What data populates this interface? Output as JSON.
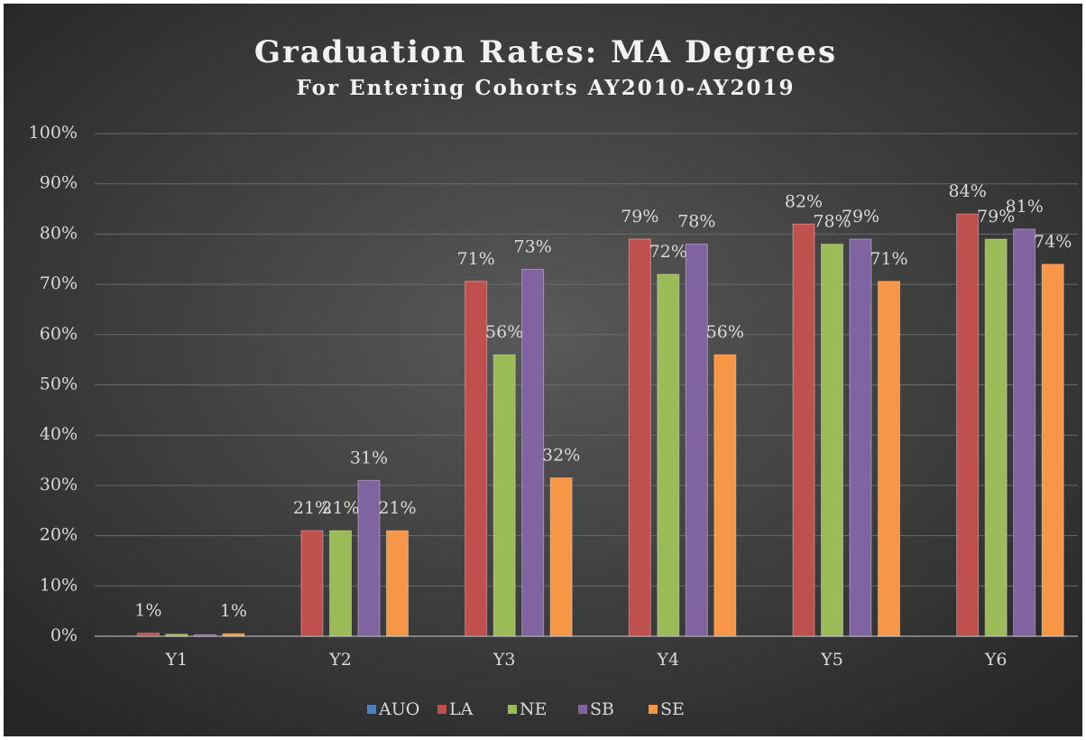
{
  "chart_data": {
    "type": "bar",
    "title": "Graduation Rates: MA Degrees",
    "subtitle": "For Entering Cohorts AY2010-AY2019",
    "categories": [
      "Y1",
      "Y2",
      "Y3",
      "Y4",
      "Y5",
      "Y6"
    ],
    "series": [
      {
        "name": "AUO",
        "color": "#4f81bd",
        "values": [
          null,
          null,
          null,
          null,
          null,
          null
        ],
        "value_labels": [
          null,
          null,
          null,
          null,
          null,
          null
        ]
      },
      {
        "name": "LA",
        "color": "#c0504d",
        "values": [
          0.6,
          21,
          70.6,
          79,
          82,
          84
        ],
        "value_labels": [
          "1%",
          "21%",
          "71%",
          "79%",
          "82%",
          "84%"
        ]
      },
      {
        "name": "NE",
        "color": "#9bbb59",
        "values": [
          0.4,
          21,
          56,
          72,
          78,
          79
        ],
        "value_labels": [
          null,
          "21%",
          "56%",
          "72%",
          "78%",
          "79%"
        ]
      },
      {
        "name": "SB",
        "color": "#8064a2",
        "values": [
          0.3,
          31,
          73,
          78,
          79,
          81
        ],
        "value_labels": [
          null,
          "31%",
          "73%",
          "78%",
          "79%",
          "81%"
        ]
      },
      {
        "name": "SE",
        "color": "#f79646",
        "values": [
          0.5,
          21,
          31.5,
          56,
          70.6,
          74
        ],
        "value_labels": [
          "1%",
          "21%",
          "32%",
          "56%",
          "71%",
          "74%"
        ]
      }
    ],
    "ylim": [
      0,
      100
    ],
    "yticks": [
      {
        "value": 0,
        "label": "0%"
      },
      {
        "value": 10,
        "label": "10%"
      },
      {
        "value": 20,
        "label": "20%"
      },
      {
        "value": 30,
        "label": "30%"
      },
      {
        "value": 40,
        "label": "40%"
      },
      {
        "value": 50,
        "label": "50%"
      },
      {
        "value": 60,
        "label": "60%"
      },
      {
        "value": 70,
        "label": "70%"
      },
      {
        "value": 80,
        "label": "80%"
      },
      {
        "value": 90,
        "label": "90%"
      },
      {
        "value": 100,
        "label": "100%"
      }
    ],
    "grid": true,
    "legend": "bottom"
  }
}
